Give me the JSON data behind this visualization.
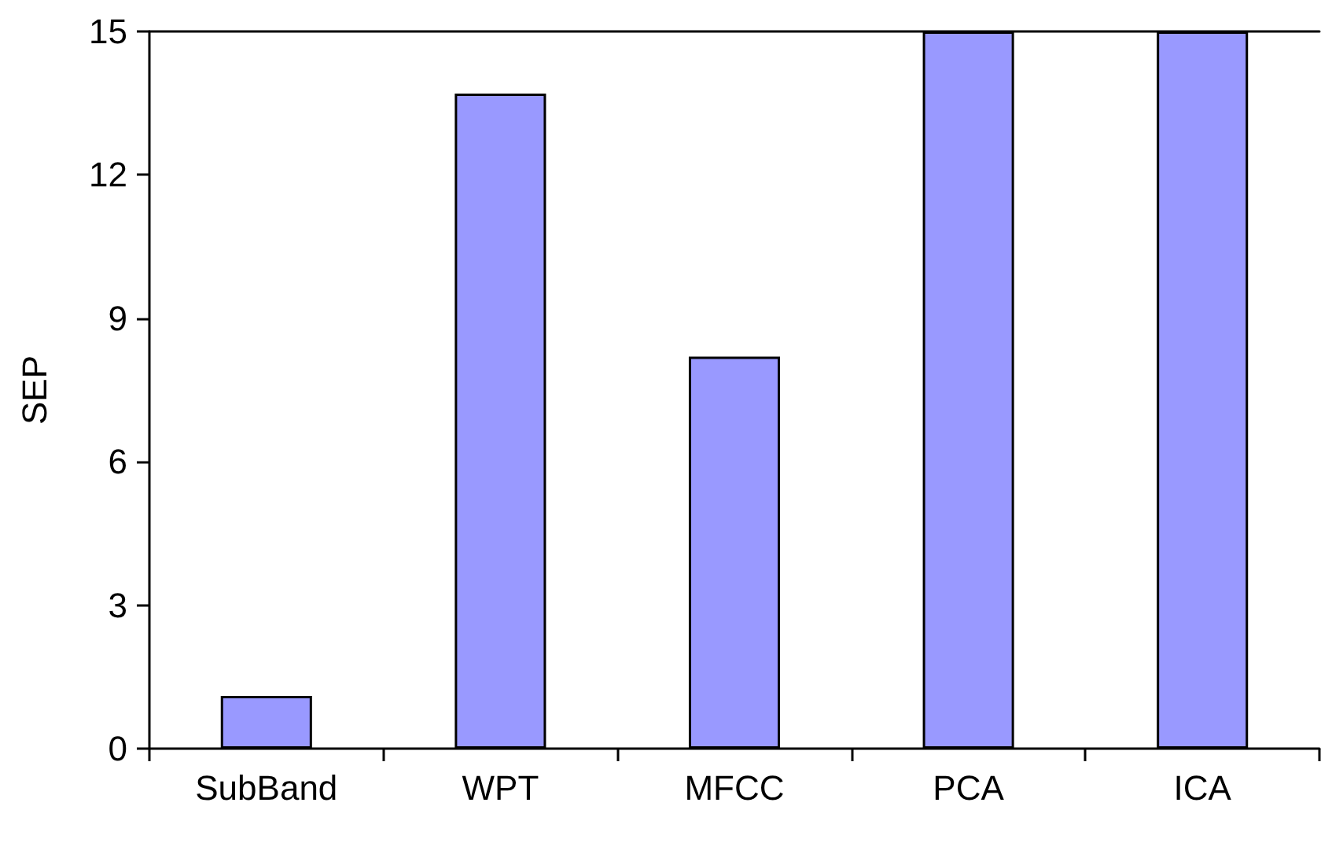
{
  "chart_data": {
    "type": "bar",
    "ylabel": "SEP",
    "categories": [
      "SubBand",
      "WPT",
      "MFCC",
      "PCA",
      "ICA"
    ],
    "series": [
      {
        "color": "#9999ff",
        "values": [
          1.1,
          13.7,
          8.2,
          15,
          15
        ]
      }
    ],
    "ylim": [
      0,
      15
    ],
    "yticks": [
      0,
      3,
      6,
      9,
      12,
      15
    ],
    "grid": false
  }
}
